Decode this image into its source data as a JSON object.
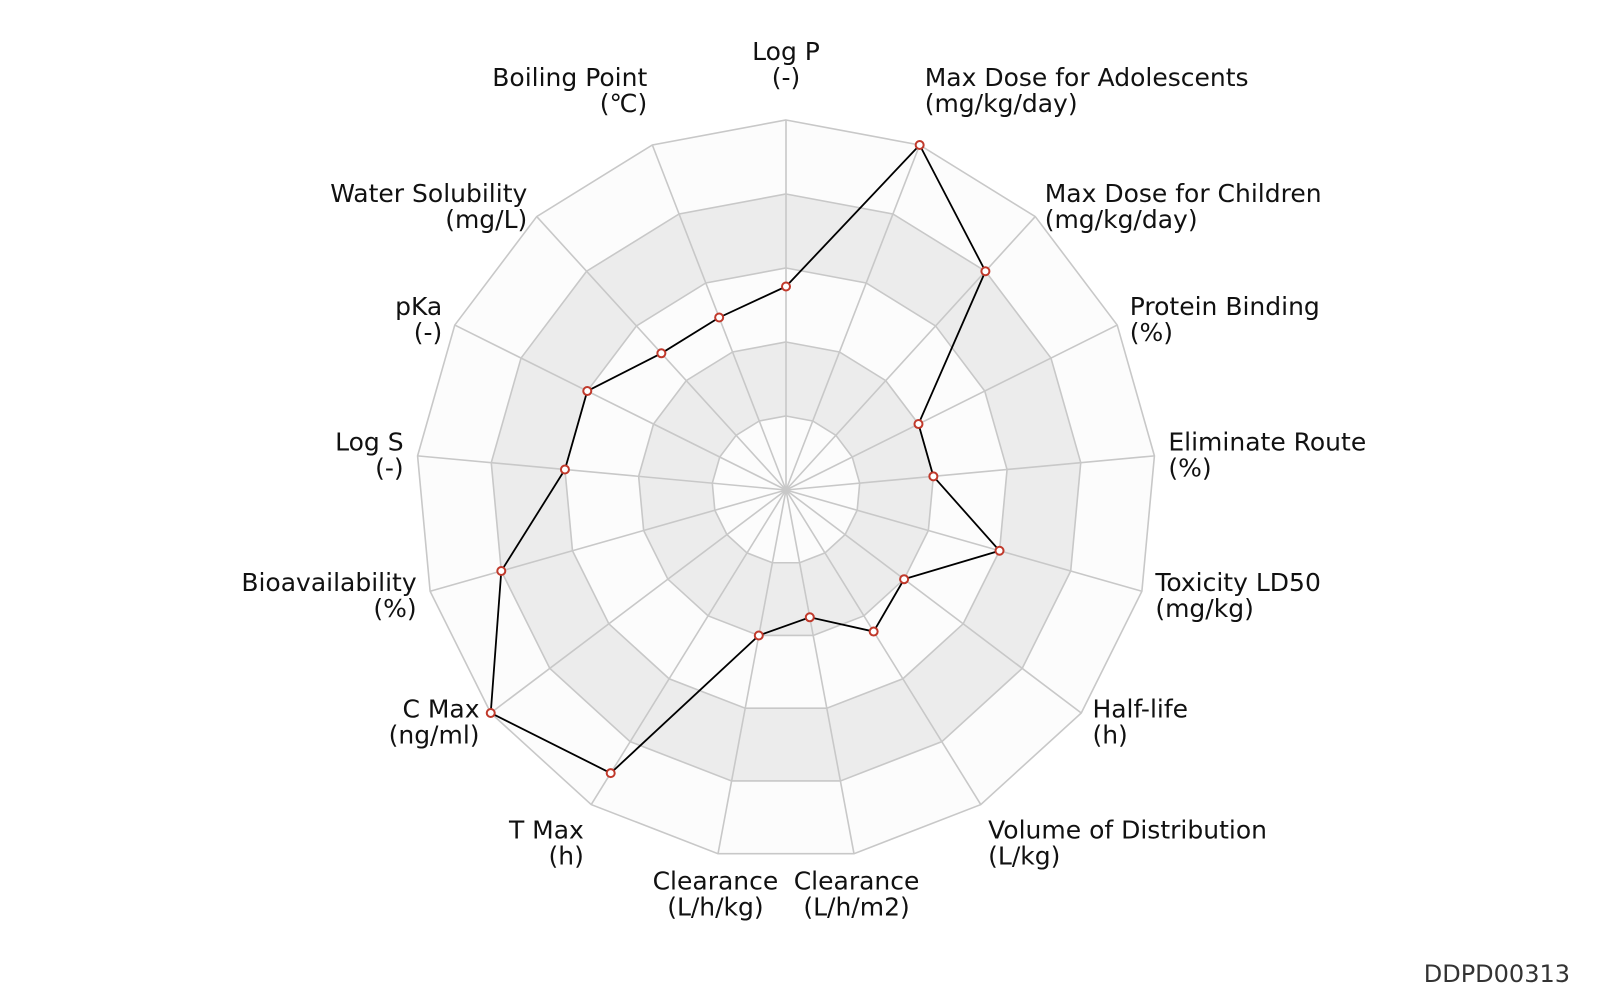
{
  "colors": {
    "band_dark": "#ececec",
    "band_light": "#fcfcfc",
    "grid_line": "#c8c8c8",
    "series_line": "#000000",
    "marker_edge": "#c0392b",
    "marker_fill": "#ffffff"
  },
  "footer_id": "DDPD00313",
  "chart_data": {
    "type": "radar",
    "axes": [
      {
        "name": "Log P",
        "unit": "(-)"
      },
      {
        "name": "Max Dose for Adolescents",
        "unit": "(mg/kg/day)"
      },
      {
        "name": "Max Dose for Children",
        "unit": "(mg/kg/day)"
      },
      {
        "name": "Protein Binding",
        "unit": "(%)"
      },
      {
        "name": "Eliminate Route",
        "unit": "(%)"
      },
      {
        "name": "Toxicity LD50",
        "unit": "(mg/kg)"
      },
      {
        "name": "Half-life",
        "unit": "(h)"
      },
      {
        "name": "Volume of Distribution",
        "unit": "(L/kg)"
      },
      {
        "name": "Clearance",
        "unit": "(L/h/m2)"
      },
      {
        "name": "Clearance",
        "unit": "(L/h/kg)"
      },
      {
        "name": "T Max",
        "unit": "(h)"
      },
      {
        "name": "C Max",
        "unit": "(ng/ml)"
      },
      {
        "name": "Bioavailability",
        "unit": "(%)"
      },
      {
        "name": "Log S",
        "unit": "(-)"
      },
      {
        "name": "pKa",
        "unit": "(-)"
      },
      {
        "name": "Water Solubility",
        "unit": "(mg/L)"
      },
      {
        "name": "Boiling Point",
        "unit": "(℃)"
      }
    ],
    "values": [
      0.55,
      1.0,
      0.8,
      0.4,
      0.4,
      0.6,
      0.4,
      0.45,
      0.35,
      0.4,
      0.9,
      1.0,
      0.8,
      0.6,
      0.6,
      0.5,
      0.5
    ],
    "rings": 5,
    "range": [
      0,
      1
    ]
  }
}
